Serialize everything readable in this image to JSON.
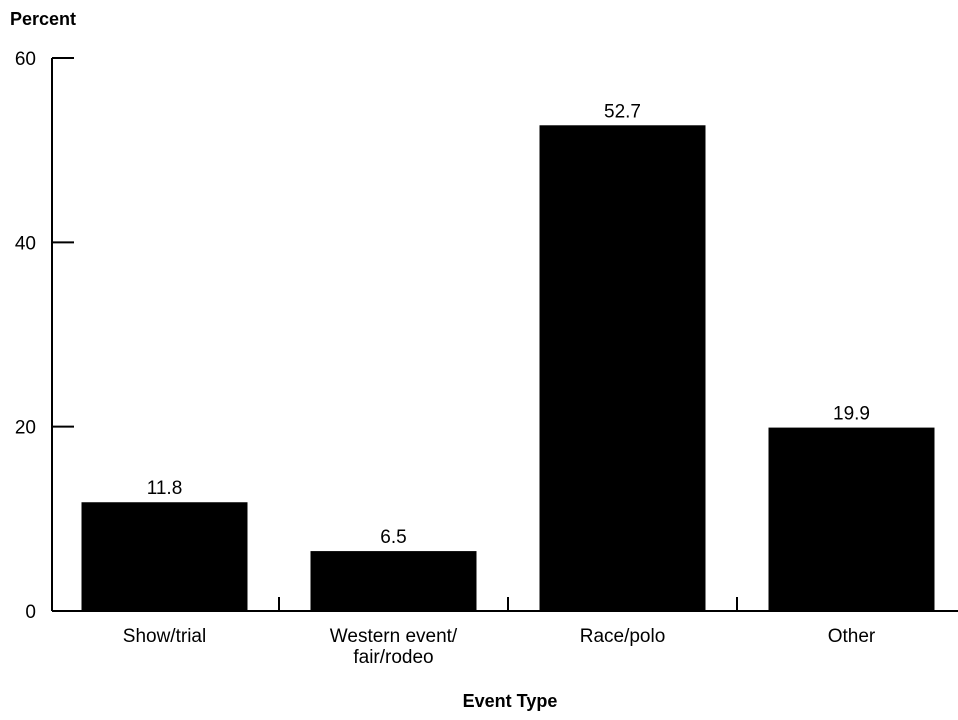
{
  "chart_data": {
    "type": "bar",
    "title": "",
    "ylabel": "Percent",
    "xlabel": "Event Type",
    "categories": [
      [
        "Show/trial"
      ],
      [
        "Western event/",
        "fair/rodeo"
      ],
      [
        "Race/polo"
      ],
      [
        "Other"
      ]
    ],
    "values": [
      11.8,
      6.5,
      52.7,
      19.9
    ],
    "value_labels": [
      "11.8",
      "6.5",
      "52.7",
      "19.9"
    ],
    "ylim": [
      0,
      60
    ],
    "yticks": [
      0,
      20,
      40,
      60
    ],
    "ytick_labels": [
      "0",
      "20",
      "40",
      "60"
    ],
    "grid": false,
    "bar_color": "#000000"
  }
}
